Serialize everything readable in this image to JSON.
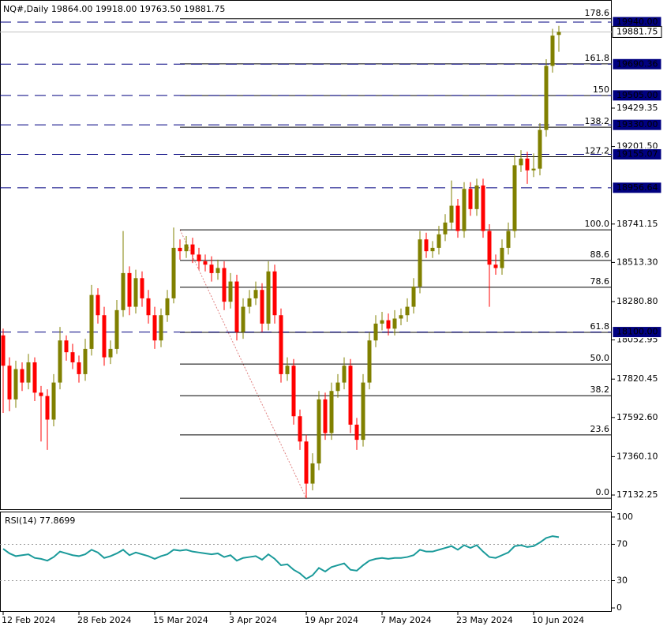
{
  "chart_data": [
    {
      "type": "candlestick",
      "title": "NQ#,Daily  19864.00 19918.00 19763.50 19881.75",
      "categories": [
        "12 Feb 2024",
        null,
        null,
        null,
        null,
        null,
        null,
        null,
        null,
        null,
        null,
        null,
        "28 Feb 2024",
        null,
        null,
        null,
        null,
        null,
        null,
        null,
        null,
        null,
        null,
        null,
        "15 Mar 2024",
        null,
        null,
        null,
        null,
        null,
        null,
        null,
        null,
        null,
        null,
        null,
        "3 Apr 2024",
        null,
        null,
        null,
        null,
        null,
        null,
        null,
        null,
        null,
        null,
        null,
        "19 Apr 2024",
        null,
        null,
        null,
        null,
        null,
        null,
        null,
        null,
        null,
        null,
        null,
        "7 May 2024",
        null,
        null,
        null,
        null,
        null,
        null,
        null,
        null,
        null,
        null,
        null,
        "23 May 2024",
        null,
        null,
        null,
        null,
        null,
        null,
        null,
        null,
        null,
        null,
        null,
        "10 Jun 2024",
        null,
        null,
        null,
        null
      ],
      "open": [
        18080,
        17900,
        17700,
        17880,
        17800,
        17920,
        17740,
        17720,
        17580,
        17800,
        18050,
        17980,
        17920,
        17850,
        18000,
        18320,
        18200,
        17950,
        18000,
        18230,
        18450,
        18250,
        18420,
        18300,
        18200,
        18050,
        18200,
        18300,
        18600,
        18580,
        18620,
        18560,
        18520,
        18500,
        18450,
        18480,
        18280,
        18400,
        18100,
        18250,
        18300,
        18350,
        18150,
        18460,
        18200,
        17850,
        17900,
        17600,
        17450,
        17200,
        17320,
        17700,
        17500,
        17750,
        17800,
        17900,
        17550,
        17460,
        17800,
        18050,
        18150,
        18170,
        18120,
        18180,
        18200,
        18250,
        18370,
        18650,
        18580,
        18600,
        18680,
        18750,
        18850,
        18700,
        18950,
        18830,
        18970,
        18700,
        18500,
        18480,
        18600,
        18700,
        19090,
        19130,
        19060,
        19070,
        19300,
        19680,
        19864
      ],
      "high": [
        18120,
        17950,
        17930,
        17920,
        17970,
        17950,
        17780,
        17760,
        17850,
        18130,
        18080,
        18030,
        17960,
        18060,
        18380,
        18360,
        18250,
        18050,
        18290,
        18700,
        18490,
        18470,
        18460,
        18350,
        18250,
        18240,
        18350,
        18720,
        18650,
        18670,
        18660,
        18600,
        18560,
        18550,
        18530,
        18520,
        18450,
        18440,
        18300,
        18350,
        18400,
        18390,
        18520,
        18500,
        18240,
        17950,
        17940,
        17640,
        17490,
        17380,
        17750,
        17740,
        17800,
        17850,
        17950,
        17940,
        17590,
        17850,
        18100,
        18200,
        18220,
        18210,
        18230,
        18240,
        18300,
        18420,
        18700,
        18690,
        18640,
        18730,
        18800,
        19000,
        18890,
        18990,
        18990,
        19010,
        19010,
        18740,
        18560,
        18650,
        18750,
        19150,
        19180,
        19170,
        19160,
        19340,
        19720,
        19900,
        19918
      ],
      "low": [
        17620,
        17630,
        17650,
        17750,
        17760,
        17690,
        17450,
        17400,
        17540,
        17760,
        17930,
        17880,
        17800,
        17810,
        17960,
        18150,
        17900,
        17910,
        17970,
        18190,
        18200,
        18210,
        18250,
        18150,
        18000,
        18010,
        18160,
        18270,
        18530,
        18540,
        18510,
        18470,
        18460,
        18400,
        18410,
        18230,
        18240,
        18050,
        18060,
        18210,
        18260,
        18100,
        18110,
        18150,
        17800,
        17810,
        17550,
        17400,
        17113,
        17160,
        17280,
        17460,
        17460,
        17710,
        17760,
        17500,
        17400,
        17420,
        17760,
        18010,
        18110,
        18080,
        18080,
        18140,
        18160,
        18210,
        18330,
        18540,
        18540,
        18560,
        18640,
        18710,
        18660,
        18660,
        18790,
        18790,
        18660,
        18250,
        18440,
        18440,
        18560,
        18660,
        19050,
        18980,
        19020,
        19030,
        19260,
        19640,
        19763.5
      ],
      "close": [
        17900,
        17700,
        17880,
        17800,
        17920,
        17740,
        17720,
        17580,
        17800,
        18050,
        17980,
        17920,
        17850,
        18000,
        18320,
        18200,
        17950,
        18000,
        18230,
        18450,
        18250,
        18420,
        18300,
        18200,
        18050,
        18200,
        18300,
        18600,
        18580,
        18620,
        18560,
        18520,
        18500,
        18450,
        18480,
        18280,
        18400,
        18100,
        18250,
        18300,
        18350,
        18150,
        18460,
        18200,
        17850,
        17900,
        17600,
        17450,
        17200,
        17320,
        17700,
        17500,
        17750,
        17800,
        17900,
        17550,
        17460,
        17800,
        18050,
        18150,
        18170,
        18120,
        18180,
        18200,
        18250,
        18370,
        18650,
        18580,
        18600,
        18680,
        18750,
        18850,
        18700,
        18950,
        18830,
        18970,
        18700,
        18500,
        18480,
        18600,
        18700,
        19090,
        19130,
        19060,
        19070,
        19300,
        19680,
        19860,
        19881.75
      ],
      "up_color": "#808000",
      "down_color": "#ff0000",
      "ylim": [
        17048,
        20062
      ],
      "yticks": [
        17132.25,
        {
          "value": 17360.1,
          "label": "17360.10"
        },
        {
          "value": 17592.6,
          "label": "17592.60"
        },
        17820.45,
        18052.95,
        {
          "value": 18280.8,
          "label": "18280.80"
        },
        {
          "value": 18513.3,
          "label": "18513.30"
        },
        18741.15,
        {
          "value": 19201.5,
          "label": "19201.50"
        },
        19429.35
      ],
      "price_levels": [
        {
          "value": 19940,
          "label": "19940.00"
        },
        19690.36,
        {
          "value": 19505,
          "label": "19505.00"
        },
        {
          "value": 19330,
          "label": "19330.00"
        },
        19155.07,
        18956.64,
        {
          "value": 18100,
          "label": "18100.00"
        }
      ],
      "current_price": 19881.75,
      "fibonacci": [
        {
          "name": "0.0",
          "price": 17113
        },
        {
          "name": "23.6",
          "price": 17489
        },
        {
          "name": "38.2",
          "price": 17722
        },
        {
          "name": "50.0",
          "price": 17910
        },
        {
          "name": "61.8",
          "price": 18098
        },
        {
          "name": "78.6",
          "price": 18366
        },
        {
          "name": "88.6",
          "price": 18525
        },
        {
          "name": "100.0",
          "price": 18707
        },
        {
          "name": "127.2",
          "price": 19141
        },
        {
          "name": "138.2",
          "price": 19316
        },
        {
          "name": "150",
          "price": 19504
        },
        {
          "name": "161.8",
          "price": 19692
        },
        {
          "name": "178.6",
          "price": 19960
        }
      ]
    },
    {
      "type": "line",
      "title": "RSI(14) 77.8699",
      "color": "#1a9a9a",
      "values": [
        65,
        60,
        57,
        58,
        59,
        55,
        54,
        52,
        56,
        62,
        60,
        58,
        57,
        59,
        64,
        61,
        55,
        57,
        60,
        64,
        58,
        61,
        59,
        57,
        54,
        57,
        59,
        64,
        63,
        64,
        62,
        61,
        60,
        59,
        60,
        56,
        58,
        52,
        55,
        56,
        57,
        53,
        59,
        54,
        47,
        48,
        42,
        38,
        32,
        36,
        44,
        40,
        45,
        47,
        49,
        42,
        41,
        47,
        52,
        54,
        55,
        54,
        55,
        55,
        56,
        58,
        64,
        62,
        62,
        64,
        66,
        68,
        64,
        69,
        66,
        69,
        62,
        56,
        55,
        58,
        61,
        68,
        69,
        67,
        68,
        72,
        77,
        79,
        77.8699
      ],
      "ylim": [
        -4.3,
        106
      ],
      "yticks": [
        100,
        70,
        30,
        0
      ],
      "levels": [
        70,
        30
      ]
    }
  ]
}
